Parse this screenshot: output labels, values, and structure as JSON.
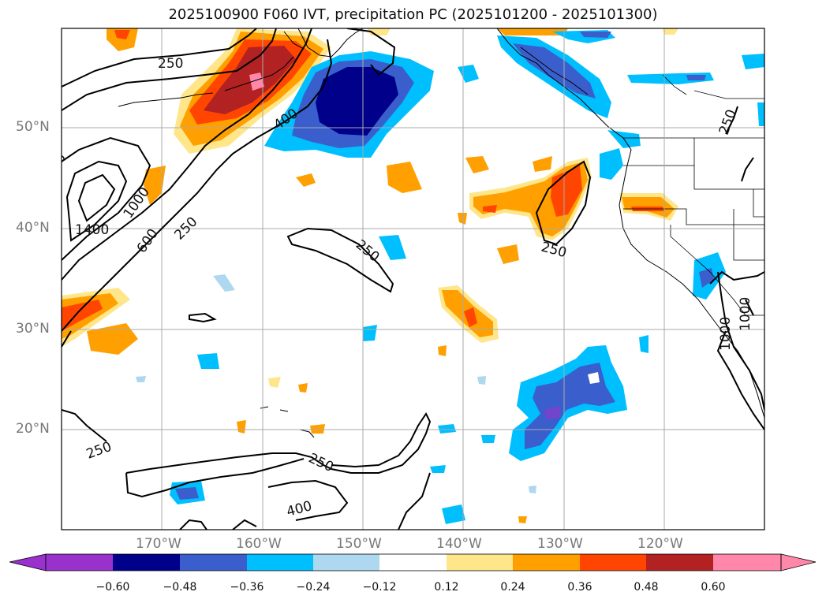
{
  "title": "2025100900 F060 IVT, precipitation PC (2025101200 - 2025101300)",
  "latitude_labels": [
    "50°N",
    "40°N",
    "30°N",
    "20°N"
  ],
  "longitude_labels": [
    "170°W",
    "160°W",
    "150°W",
    "140°W",
    "130°W",
    "120°W"
  ],
  "ivt_contour_labels": [
    "250",
    "400",
    "600",
    "1000",
    "1400",
    "250",
    "250",
    "250",
    "250",
    "250",
    "400",
    "250",
    "1000",
    "1000",
    "250",
    "250"
  ],
  "colorbar": {
    "tick_labels": [
      "−0.60",
      "−0.48",
      "−0.36",
      "−0.24",
      "−0.12",
      "0.12",
      "0.24",
      "0.36",
      "0.48",
      "0.60"
    ],
    "colors": [
      "#9932CC",
      "#00008B",
      "#3A5FCD",
      "#00BFFF",
      "#ADD8F0",
      "#FFFFFF",
      "#FFE68A",
      "#FFA000",
      "#FF4500",
      "#B22222",
      "#FF88AA"
    ],
    "extend": "both"
  },
  "colors": {
    "coast": "#000000",
    "grid": "#AAAAAA",
    "label_gray": "#777777"
  }
}
